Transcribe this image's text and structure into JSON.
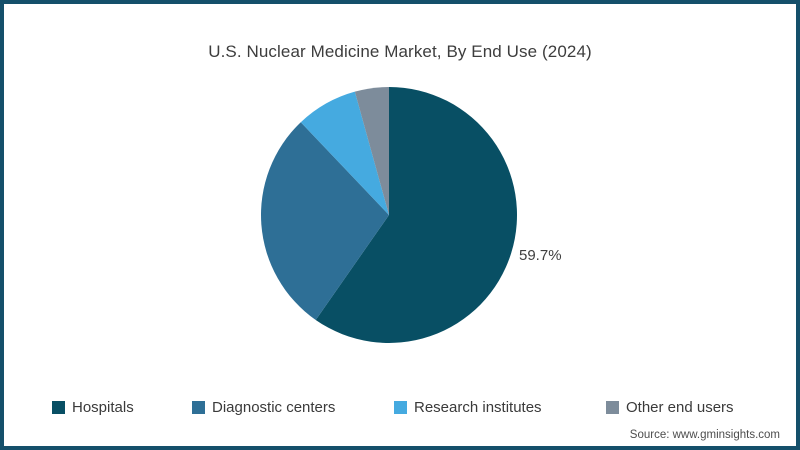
{
  "title": "U.S. Nuclear Medicine Market, By End Use (2024)",
  "source": "Source: www.gminsights.com",
  "frame": {
    "border_color": "#15506B",
    "background": "#FFFFFF"
  },
  "chart_data": {
    "type": "pie",
    "title": "U.S. Nuclear Medicine Market, By End Use (2024)",
    "categories": [
      "Hospitals",
      "Diagnostic centers",
      "Research institutes",
      "Other end users"
    ],
    "values": [
      59.7,
      28.2,
      7.8,
      4.3
    ],
    "colors": [
      "#084F64",
      "#2E6F96",
      "#45AAE0",
      "#7D8C9B"
    ],
    "start_angle_deg": 0,
    "direction": "clockwise",
    "slice_label": {
      "text": "59.7%",
      "slice": "Hospitals"
    },
    "legend_position": "bottom"
  },
  "legend": {
    "items": [
      {
        "label": "Hospitals",
        "color": "#084F64"
      },
      {
        "label": "Diagnostic centers",
        "color": "#2E6F96"
      },
      {
        "label": "Research institutes",
        "color": "#45AAE0"
      },
      {
        "label": "Other end users",
        "color": "#7D8C9B"
      }
    ]
  }
}
